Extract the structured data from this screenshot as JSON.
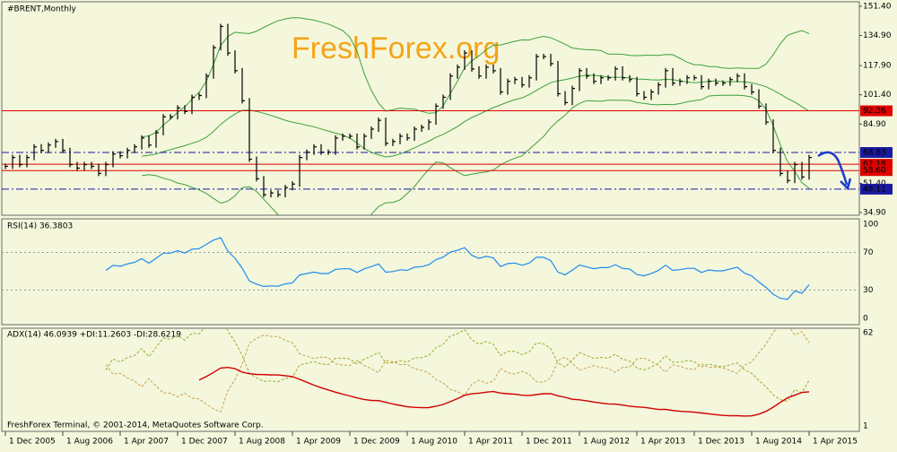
{
  "chart_data": {
    "type": "ohlc",
    "title": "#BRENT,Monthly",
    "watermark": "FreshForex.org",
    "footer": "FreshForex Terminal, © 2001-2014, MetaQuotes Software Corp.",
    "bar_color": "#000000",
    "band_color": "#3ca03c",
    "categories": [
      "1 Dec 2005",
      null,
      null,
      null,
      null,
      null,
      null,
      null,
      "1 Aug 2006",
      null,
      null,
      null,
      null,
      null,
      null,
      null,
      "1 Apr 2007",
      null,
      null,
      null,
      null,
      null,
      null,
      null,
      "1 Dec 2007",
      null,
      null,
      null,
      null,
      null,
      null,
      null,
      "1 Aug 2008",
      null,
      null,
      null,
      null,
      null,
      null,
      null,
      "1 Apr 2009",
      null,
      null,
      null,
      null,
      null,
      null,
      null,
      "1 Dec 2009",
      null,
      null,
      null,
      null,
      null,
      null,
      null,
      "1 Aug 2010",
      null,
      null,
      null,
      null,
      null,
      null,
      null,
      "1 Apr 2011",
      null,
      null,
      null,
      null,
      null,
      null,
      null,
      "1 Dec 2011",
      null,
      null,
      null,
      null,
      null,
      null,
      null,
      "1 Aug 2012",
      null,
      null,
      null,
      null,
      null,
      null,
      null,
      "1 Apr 2013",
      null,
      null,
      null,
      null,
      null,
      null,
      null,
      "1 Dec 2013",
      null,
      null,
      null,
      null,
      null,
      null,
      null,
      "1 Aug 2014",
      null,
      null,
      null,
      null,
      null,
      null,
      null,
      "1 Apr 2015"
    ],
    "close": [
      61,
      66,
      62,
      66,
      72,
      70,
      73,
      75,
      70,
      62,
      60,
      62,
      61,
      57,
      62,
      68,
      67,
      70,
      72,
      77,
      73,
      80,
      89,
      89,
      94,
      92,
      100,
      101,
      112,
      128,
      140,
      125,
      115,
      98,
      65,
      54,
      45,
      46,
      45,
      49,
      51,
      66,
      69,
      72,
      69,
      69,
      77,
      78,
      78,
      72,
      78,
      82,
      87,
      74,
      75,
      78,
      77,
      82,
      83,
      86,
      95,
      100,
      112,
      117,
      125,
      116,
      112,
      117,
      115,
      103,
      109,
      110,
      107,
      111,
      123,
      123,
      119,
      102,
      97,
      105,
      115,
      112,
      109,
      111,
      111,
      116,
      111,
      110,
      102,
      100,
      103,
      107,
      115,
      108,
      109,
      111,
      111,
      106,
      109,
      108,
      108,
      110,
      112,
      106,
      103,
      95,
      86,
      70,
      57,
      53,
      62,
      55,
      66
    ],
    "ylim": [
      34.9,
      151.4
    ],
    "yticks": [
      {
        "value": 151.4,
        "label": "151.40"
      },
      {
        "value": 134.9,
        "label": "134.90"
      },
      {
        "value": 117.9,
        "label": "117.90"
      },
      {
        "value": 101.4,
        "label": "101.40"
      },
      {
        "value": 84.9,
        "label": "84.90"
      },
      {
        "value": 51.4,
        "label": "51.40"
      },
      {
        "value": 34.9,
        "label": "34.90"
      }
    ],
    "levels": [
      {
        "value": 92.36,
        "color": "#e00000",
        "style": "solid"
      },
      {
        "value": 68.83,
        "color": "#1a1aa0",
        "style": "dashdot"
      },
      {
        "value": 62.18,
        "color": "#e00000",
        "style": "solid"
      },
      {
        "value": {
          "value": 58.6,
          "label": "58.60"
        },
        "color": "#e00000",
        "style": "solid"
      },
      {
        "value": 48.11,
        "color": "#1a1aa0",
        "style": "dashdot"
      }
    ],
    "indicators": [
      {
        "title": "RSI(14) 36.3803",
        "ylim": [
          0,
          100
        ],
        "yticks": [
          100,
          70,
          30,
          0
        ],
        "grid": [
          70,
          30
        ],
        "color": "#1e8cf0"
      },
      {
        "title": "ADX(14) 46.0939 +DI:11.2603 -DI:28.6219",
        "ylim": [
          1,
          62
        ],
        "yticks": [
          62,
          1
        ],
        "color": "#d00000",
        "plus_color": "#9aaa30",
        "minus_color": "#c8a050"
      }
    ]
  }
}
